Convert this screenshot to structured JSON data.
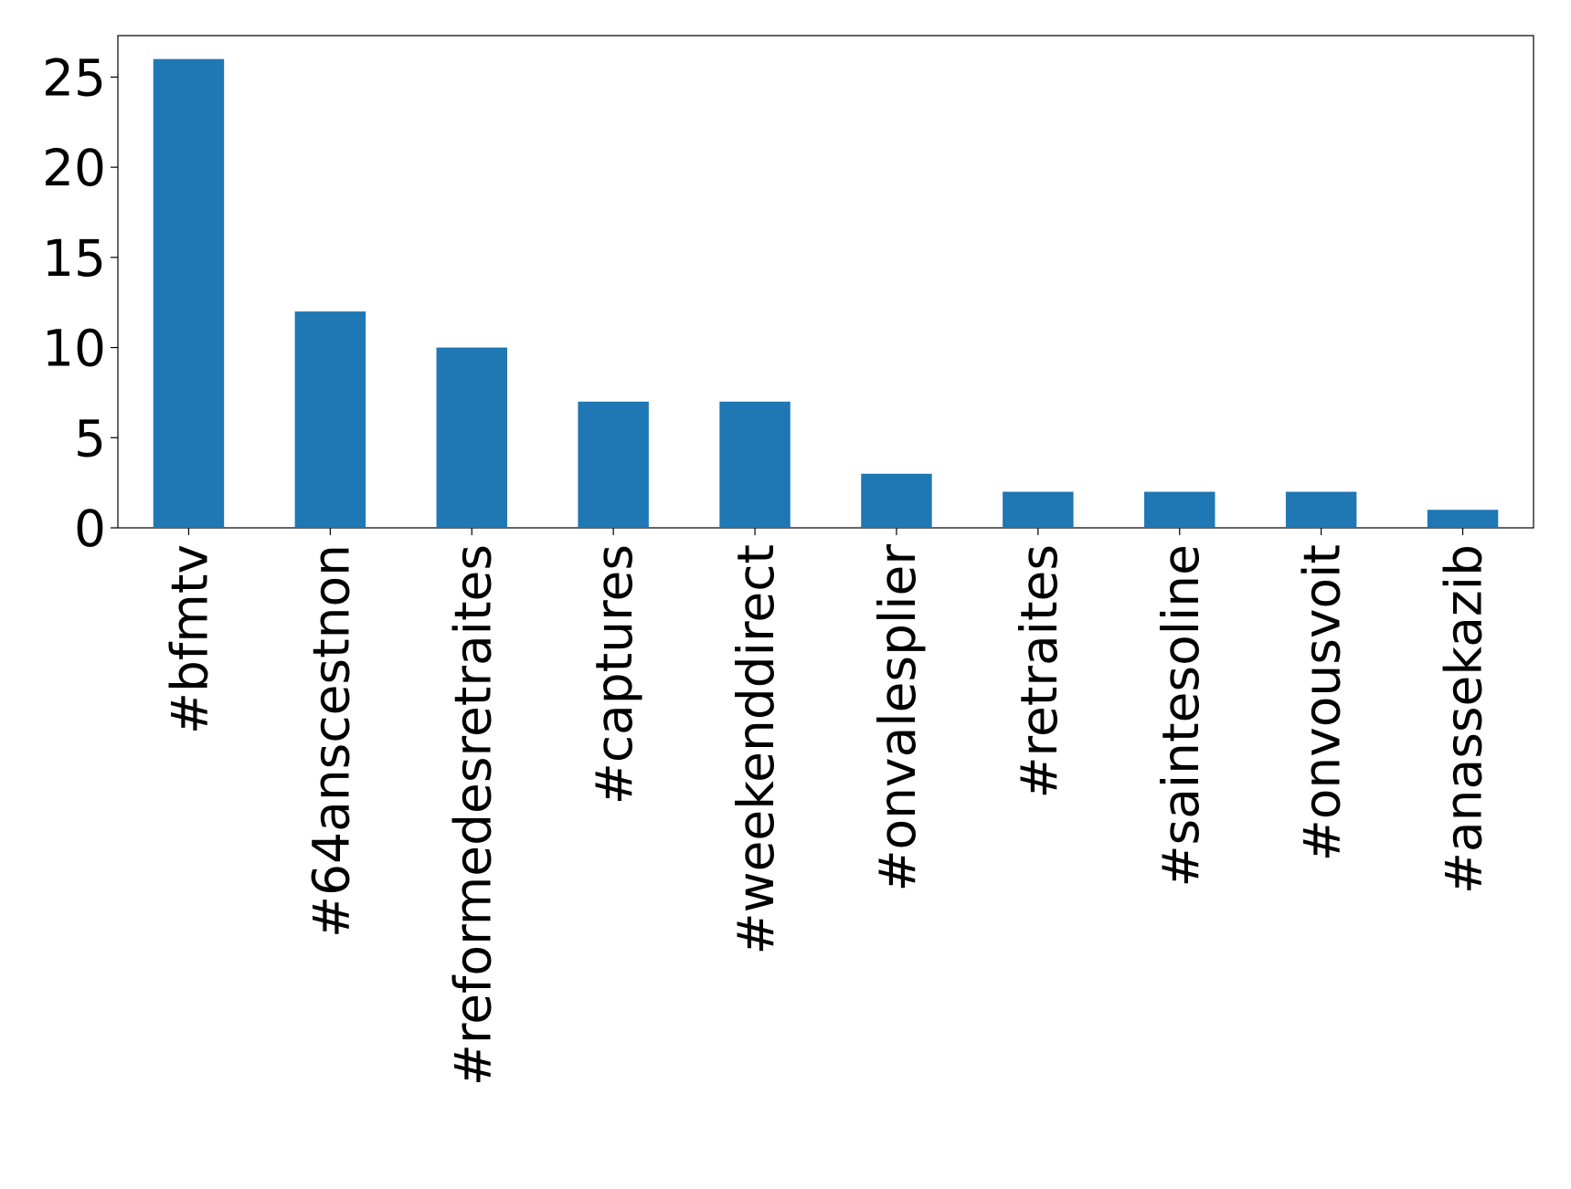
{
  "chart_data": {
    "type": "bar",
    "categories": [
      "#bfmtv",
      "#64anscestnon",
      "#reformedesretraites",
      "#captures",
      "#weekenddirect",
      "#onvalesplier",
      "#retraites",
      "#saintesoline",
      "#onvousvoit",
      "#anassekazib"
    ],
    "values": [
      26,
      12,
      10,
      7,
      7,
      3,
      2,
      2,
      2,
      1
    ],
    "color": "#1f77b4",
    "ylim": [
      0,
      27.3
    ],
    "yticks": [
      0,
      5,
      10,
      15,
      20,
      25
    ],
    "grid": false
  }
}
